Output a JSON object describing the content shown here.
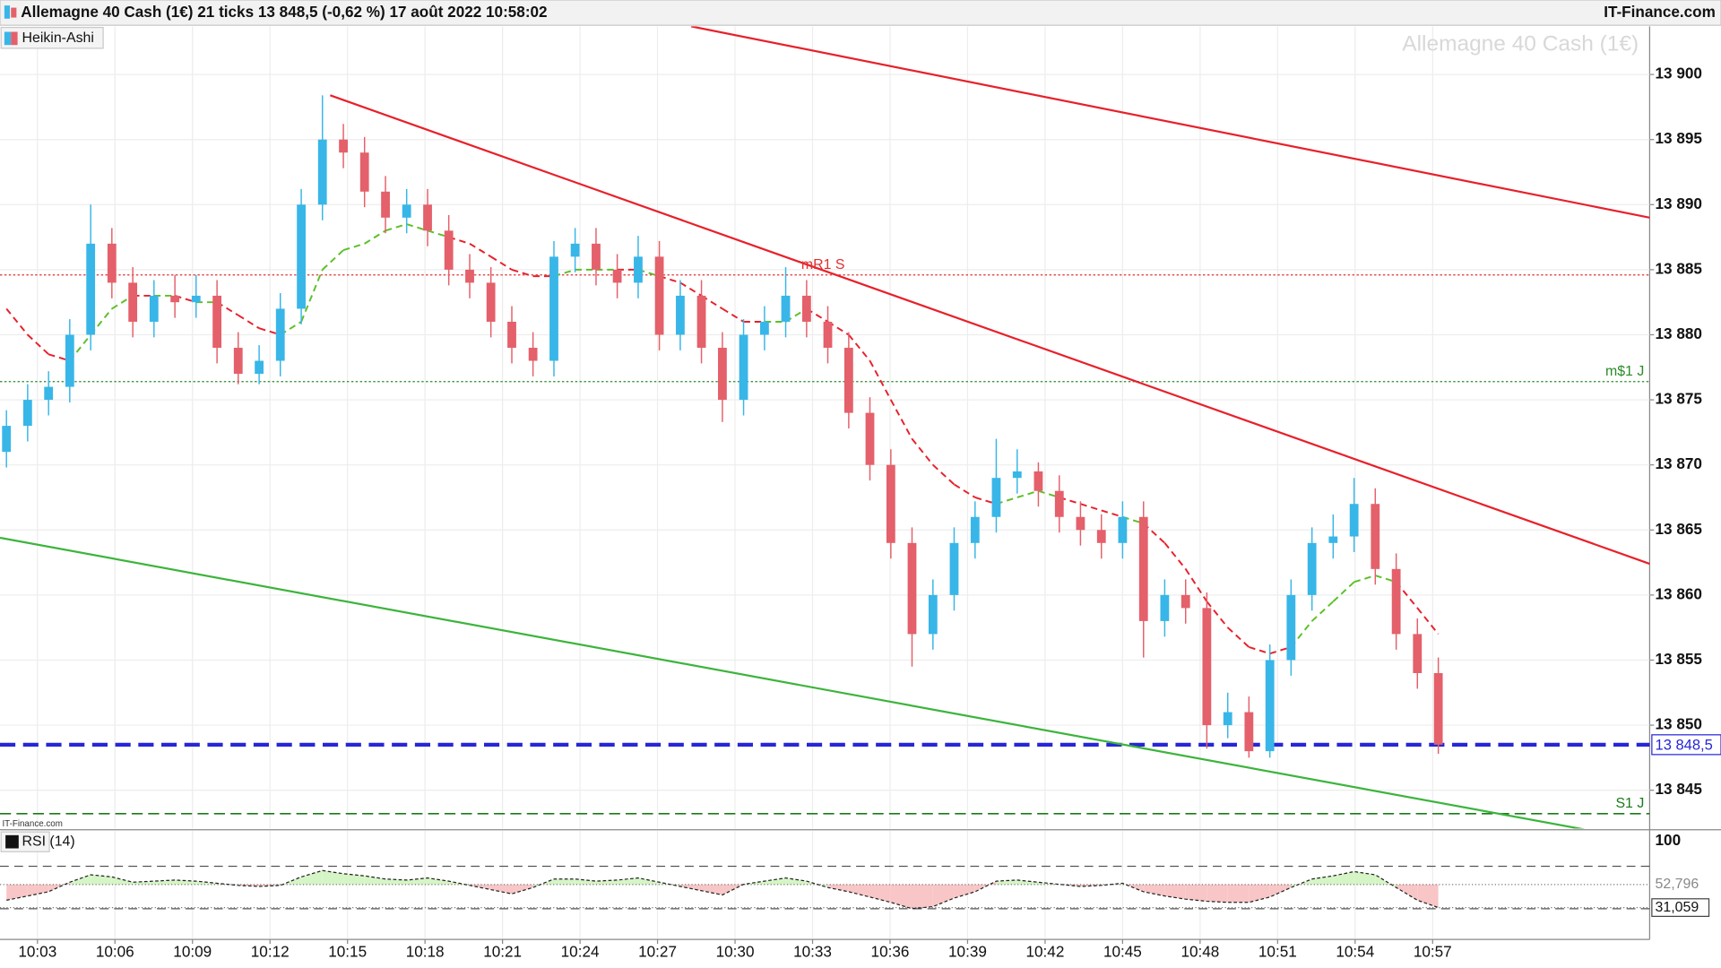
{
  "chart_data": {
    "type": "candlestick",
    "title": "Allemagne 40 Cash (1€) 21 ticks 13 848,5 (-0,62 %) 17 août 2022 10:58:02",
    "source": "IT-Finance.com",
    "style_label": "Heikin-Ashi",
    "watermark": "Allemagne 40 Cash (1€)",
    "credit": "IT-Finance.com",
    "up_color": "#38b6e8",
    "down_color": "#e4606a",
    "x": [
      601.8,
      602.62,
      603.43,
      604.25,
      605.06,
      605.88,
      606.69,
      607.51,
      608.32,
      609.14,
      609.95,
      610.77,
      611.58,
      612.4,
      613.21,
      614.03,
      614.84,
      615.66,
      616.47,
      617.29,
      618.1,
      618.92,
      619.73,
      620.55,
      621.36,
      622.18,
      622.99,
      623.81,
      624.62,
      625.44,
      626.25,
      627.07,
      627.88,
      628.7,
      629.51,
      630.33,
      631.14,
      631.96,
      632.77,
      633.59,
      634.4,
      635.22,
      636.03,
      636.85,
      637.66,
      638.48,
      639.29,
      640.11,
      640.92,
      641.74,
      642.55,
      643.37,
      644.18,
      645.0,
      645.81,
      646.63,
      647.44,
      648.26,
      649.07,
      649.89,
      650.7,
      651.52,
      652.33,
      653.15,
      653.96,
      654.78,
      655.59,
      656.41,
      657.22
    ],
    "candles": [
      [
        13871,
        13874.2,
        13869.8,
        13873
      ],
      [
        13873,
        13876.2,
        13871.8,
        13875
      ],
      [
        13875,
        13877.2,
        13873.8,
        13876
      ],
      [
        13876,
        13881.2,
        13874.8,
        13880
      ],
      [
        13880,
        13890,
        13878.8,
        13887
      ],
      [
        13887,
        13888.2,
        13882.8,
        13884
      ],
      [
        13884,
        13885.2,
        13879.8,
        13881
      ],
      [
        13881,
        13884.2,
        13879.8,
        13883
      ],
      [
        13883,
        13884.6,
        13881.3,
        13882.5
      ],
      [
        13882.5,
        13884.6,
        13881.3,
        13883
      ],
      [
        13883,
        13884.2,
        13877.8,
        13879
      ],
      [
        13879,
        13880.2,
        13876.2,
        13877
      ],
      [
        13877,
        13879.2,
        13876.2,
        13878
      ],
      [
        13878,
        13883.2,
        13876.8,
        13882
      ],
      [
        13882,
        13891.2,
        13880.8,
        13890
      ],
      [
        13890,
        13898.4,
        13888.8,
        13895
      ],
      [
        13895,
        13896.2,
        13892.8,
        13894
      ],
      [
        13894,
        13895.2,
        13889.8,
        13891
      ],
      [
        13891,
        13892.2,
        13887.8,
        13889
      ],
      [
        13889,
        13891.2,
        13887.8,
        13890
      ],
      [
        13890,
        13891.2,
        13886.8,
        13888
      ],
      [
        13888,
        13889.2,
        13883.8,
        13885
      ],
      [
        13885,
        13886.2,
        13882.8,
        13884
      ],
      [
        13884,
        13885.2,
        13879.8,
        13881
      ],
      [
        13881,
        13882.2,
        13877.8,
        13879
      ],
      [
        13879,
        13880.2,
        13876.8,
        13878
      ],
      [
        13878,
        13887.2,
        13876.8,
        13886
      ],
      [
        13886,
        13888.2,
        13884.8,
        13887
      ],
      [
        13887,
        13888.2,
        13883.8,
        13885
      ],
      [
        13885,
        13886.2,
        13882.8,
        13884
      ],
      [
        13884,
        13887.6,
        13882.8,
        13886
      ],
      [
        13886,
        13887.2,
        13878.8,
        13880
      ],
      [
        13880,
        13884.2,
        13878.8,
        13883
      ],
      [
        13883,
        13884.2,
        13877.8,
        13879
      ],
      [
        13879,
        13880.2,
        13873.3,
        13875
      ],
      [
        13875,
        13881.2,
        13873.8,
        13880
      ],
      [
        13880,
        13882.2,
        13878.8,
        13881
      ],
      [
        13881,
        13885.2,
        13879.8,
        13883
      ],
      [
        13883,
        13884.2,
        13879.8,
        13881
      ],
      [
        13881,
        13882.2,
        13877.8,
        13879
      ],
      [
        13879,
        13880.2,
        13872.8,
        13874
      ],
      [
        13874,
        13875.2,
        13868.8,
        13870
      ],
      [
        13870,
        13871.2,
        13862.8,
        13864
      ],
      [
        13864,
        13865.2,
        13854.5,
        13857
      ],
      [
        13857,
        13861.2,
        13855.8,
        13860
      ],
      [
        13860,
        13865.2,
        13858.8,
        13864
      ],
      [
        13864,
        13867.2,
        13862.8,
        13866
      ],
      [
        13866,
        13872,
        13864.8,
        13869
      ],
      [
        13869,
        13871.2,
        13867.8,
        13869.5
      ],
      [
        13869.5,
        13870.2,
        13866.8,
        13868
      ],
      [
        13868,
        13869.2,
        13864.8,
        13866
      ],
      [
        13866,
        13867.2,
        13863.8,
        13865
      ],
      [
        13865,
        13866.2,
        13862.8,
        13864
      ],
      [
        13864,
        13867.2,
        13862.8,
        13866
      ],
      [
        13866,
        13867.2,
        13855.2,
        13858
      ],
      [
        13858,
        13861.2,
        13856.8,
        13860
      ],
      [
        13860,
        13861.2,
        13857.8,
        13859
      ],
      [
        13859,
        13860.2,
        13848.2,
        13850
      ],
      [
        13850,
        13852.5,
        13849,
        13851
      ],
      [
        13851,
        13852.2,
        13847.5,
        13848
      ],
      [
        13848,
        13856.2,
        13847.5,
        13855
      ],
      [
        13855,
        13861.2,
        13853.8,
        13860
      ],
      [
        13860,
        13865.2,
        13858.8,
        13864
      ],
      [
        13864,
        13866.2,
        13862.8,
        13864.5
      ],
      [
        13864.5,
        13869,
        13863.3,
        13867
      ],
      [
        13867,
        13868.2,
        13860.8,
        13862
      ],
      [
        13862,
        13863.2,
        13855.8,
        13857
      ],
      [
        13857,
        13858.2,
        13852.8,
        13854
      ],
      [
        13854,
        13855.2,
        13847.8,
        13848.5
      ]
    ],
    "ma": [
      13882,
      13880,
      13878.5,
      13878,
      13880,
      13882,
      13883,
      13883,
      13883,
      13882.5,
      13882.5,
      13881.5,
      13880.5,
      13880,
      13881,
      13885,
      13886.5,
      13887,
      13888,
      13888.5,
      13888,
      13887.5,
      13887,
      13886,
      13885,
      13884.5,
      13884.5,
      13885,
      13885,
      13885,
      13885,
      13884.5,
      13884,
      13883,
      13882,
      13881,
      13881,
      13881,
      13882,
      13881,
      13880,
      13878,
      13875,
      13872,
      13870,
      13868.5,
      13867.5,
      13867,
      13867.5,
      13868,
      13867.5,
      13867,
      13866.5,
      13866,
      13865.5,
      13864,
      13862,
      13859.5,
      13857.5,
      13856,
      13855.5,
      13856,
      13858,
      13859.5,
      13861,
      13861.5,
      13861,
      13859,
      13857
    ],
    "ma_above_color": "#e8202a",
    "ma_below_color": "#5cc028",
    "xlim": [
      601.55,
      665.4
    ],
    "xticks": [
      {
        "value": 603,
        "label": "10:03"
      },
      {
        "value": 606,
        "label": "10:06"
      },
      {
        "value": 609,
        "label": "10:09"
      },
      {
        "value": 612,
        "label": "10:12"
      },
      {
        "value": 615,
        "label": "10:15"
      },
      {
        "value": 618,
        "label": "10:18"
      },
      {
        "value": 621,
        "label": "10:21"
      },
      {
        "value": 624,
        "label": "10:24"
      },
      {
        "value": 627,
        "label": "10:27"
      },
      {
        "value": 630,
        "label": "10:30"
      },
      {
        "value": 633,
        "label": "10:33"
      },
      {
        "value": 636,
        "label": "10:36"
      },
      {
        "value": 639,
        "label": "10:39"
      },
      {
        "value": 642,
        "label": "10:42"
      },
      {
        "value": 645,
        "label": "10:45"
      },
      {
        "value": 648,
        "label": "10:48"
      },
      {
        "value": 651,
        "label": "10:51"
      },
      {
        "value": 654,
        "label": "10:54"
      },
      {
        "value": 657,
        "label": "10:57"
      }
    ],
    "ylim": [
      13842.05,
      13903.7
    ],
    "yticks": [
      {
        "value": 13845,
        "label": "13 845"
      },
      {
        "value": 13850,
        "label": "13 850"
      },
      {
        "value": 13855,
        "label": "13 855"
      },
      {
        "value": 13860,
        "label": "13 860"
      },
      {
        "value": 13865,
        "label": "13 865"
      },
      {
        "value": 13870,
        "label": "13 870"
      },
      {
        "value": 13875,
        "label": "13 875"
      },
      {
        "value": 13880,
        "label": "13 880"
      },
      {
        "value": 13885,
        "label": "13 885"
      },
      {
        "value": 13890,
        "label": "13 890"
      },
      {
        "value": 13895,
        "label": "13 895"
      },
      {
        "value": 13900,
        "label": "13 900"
      }
    ],
    "grid": true,
    "trendlines": [
      {
        "color": "#e8202a",
        "points": [
          [
            614.33,
            13898.4
          ],
          [
            665.4,
            13862.4
          ]
        ]
      },
      {
        "color": "#e8202a",
        "points": [
          [
            628.3,
            13903.7
          ],
          [
            665.4,
            13889.0
          ]
        ]
      },
      {
        "color": "#3cb43c",
        "points": [
          [
            601.55,
            13864.4
          ],
          [
            663.1,
            13841.9
          ]
        ]
      }
    ],
    "hlines": [
      {
        "label": "mR1 S",
        "value": 13884.6,
        "color": "#e03030",
        "style": "dotted"
      },
      {
        "label": "m$1 J",
        "value": 13876.4,
        "color": "#2a8a2a",
        "style": "dotted"
      },
      {
        "label": "S1 J",
        "value": 13843.2,
        "color": "#1a7a1a",
        "style": "dashed"
      },
      {
        "price_label": "13 848,5",
        "value": 13848.5,
        "color": "#2626d8",
        "style": "bold-dashed"
      }
    ],
    "rsi": {
      "name": "RSI (14)",
      "values": [
        38,
        42,
        46,
        55,
        62,
        60,
        55,
        56,
        57,
        56,
        54,
        52,
        51,
        52,
        60,
        66,
        63,
        61,
        58,
        57,
        59,
        56,
        52,
        48,
        44,
        50,
        58,
        58,
        56,
        57,
        59,
        55,
        51,
        47,
        43,
        53,
        56,
        59,
        56,
        50,
        46,
        41,
        36,
        30,
        32,
        40,
        46,
        56,
        57,
        55,
        53,
        51,
        52,
        54,
        46,
        42,
        39,
        37,
        36,
        36,
        41,
        50,
        58,
        61,
        65,
        62,
        50,
        38,
        31.059
      ],
      "ylim": [
        2,
        103.5
      ],
      "yticks": [
        100,
        {
          "value": 52.796,
          "label": "52,796"
        },
        {
          "value": 31.059,
          "label": "31,059"
        }
      ],
      "levels": [
        70,
        30
      ],
      "up_fill": "#d6f5c6",
      "down_fill": "#f8c6c6"
    }
  }
}
